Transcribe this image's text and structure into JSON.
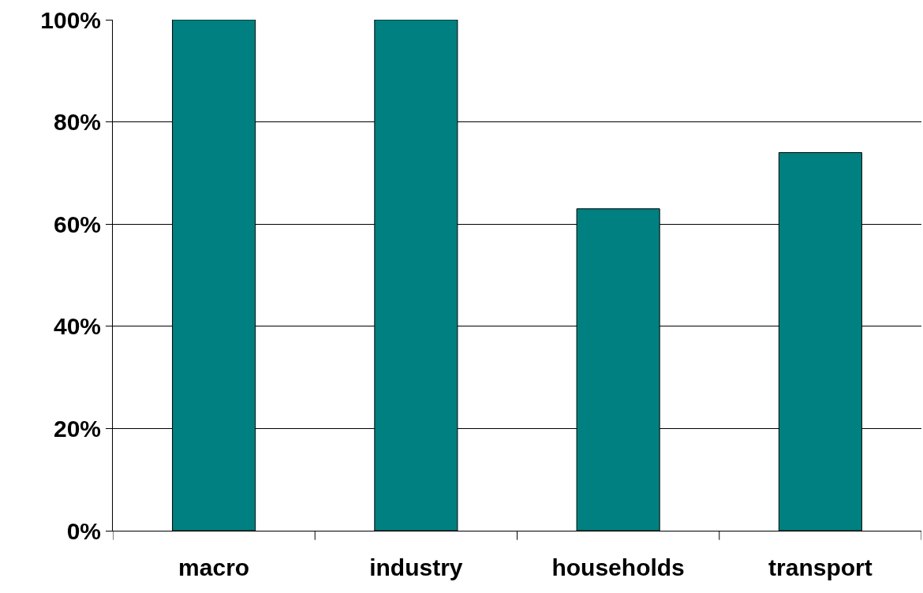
{
  "chart_data": {
    "type": "bar",
    "categories": [
      "macro",
      "industry",
      "households",
      "transport"
    ],
    "values": [
      100,
      100,
      63,
      74
    ],
    "color": "#008080",
    "ylim": [
      0,
      100
    ],
    "yticks": [
      {
        "value": 0,
        "label": "0%"
      },
      {
        "value": 20,
        "label": "20%"
      },
      {
        "value": 40,
        "label": "40%"
      },
      {
        "value": 60,
        "label": "60%"
      },
      {
        "value": 80,
        "label": "80%"
      },
      {
        "value": 100,
        "label": "100%"
      }
    ],
    "grid": "y"
  }
}
